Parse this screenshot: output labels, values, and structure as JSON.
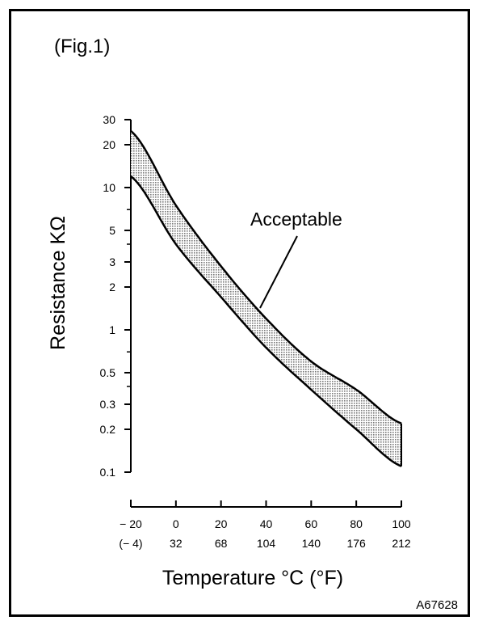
{
  "figure_label": "(Fig.1)",
  "image_code": "A67628",
  "chart_data": {
    "type": "area",
    "title": "",
    "xlabel": "Temperature °C (°F)",
    "ylabel": "Resistance KΩ",
    "y_scale": "log",
    "ylim": [
      0.1,
      30
    ],
    "xlim": [
      -20,
      100
    ],
    "x_ticks_c": [
      -20,
      0,
      20,
      40,
      60,
      80,
      100
    ],
    "x_ticks_f": [
      "(− 4)",
      "32",
      "68",
      "104",
      "140",
      "176",
      "212"
    ],
    "x_tick_labels_c": [
      "− 20",
      "0",
      "20",
      "40",
      "60",
      "80",
      "100"
    ],
    "y_ticks": [
      30,
      20,
      10,
      5,
      3,
      2,
      1,
      0.5,
      0.3,
      0.2,
      0.1
    ],
    "y_minor_ticks": [
      7,
      4,
      0.7,
      0.4
    ],
    "band_label": "Acceptable",
    "series": [
      {
        "x": [
          -20,
          0,
          20,
          40,
          60,
          80,
          100
        ],
        "values": [
          25,
          7.5,
          2.8,
          1.2,
          0.6,
          0.38,
          0.22
        ]
      },
      {
        "x": [
          -20,
          0,
          20,
          40,
          60,
          80,
          100
        ],
        "values": [
          12,
          4,
          1.7,
          0.75,
          0.38,
          0.2,
          0.11
        ]
      }
    ]
  },
  "colors": {
    "band_fill": "#d0d0d0",
    "ink": "#000000"
  }
}
